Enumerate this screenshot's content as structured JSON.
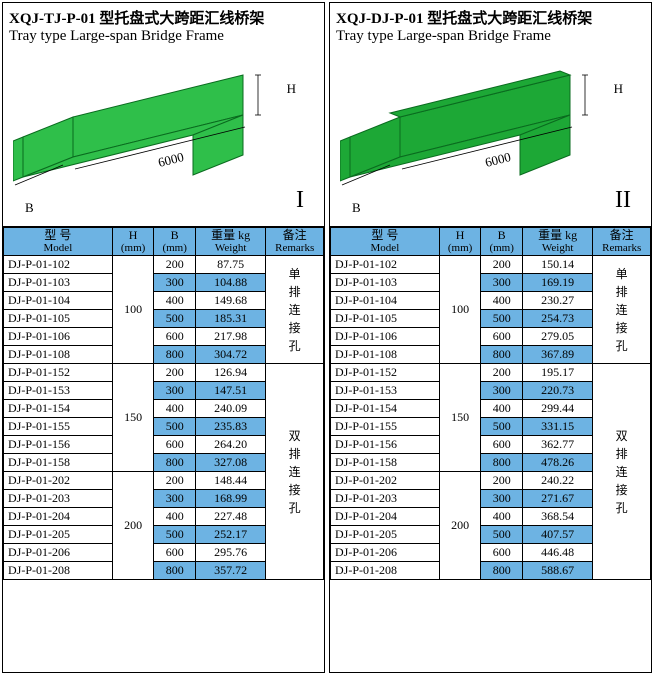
{
  "panels": [
    {
      "title_cn": "XQJ-TJ-P-01 型托盘式大跨距汇线桥架",
      "title_en": "Tray type Large-span Bridge Frame",
      "roman": "I",
      "length_label": "6000",
      "dim_H": "H",
      "dim_B": "B",
      "tray_fill": "#2fbf4a",
      "header": {
        "model_cn": "型 号",
        "model_en": "Model",
        "h_cn": "H",
        "h_en": "(mm)",
        "b_cn": "B",
        "b_en": "(mm)",
        "w_cn": "重量 kg",
        "w_en": "Weight",
        "r_cn": "备注",
        "r_en": "Remarks"
      },
      "groups": [
        {
          "H": "100",
          "remarks": "单排连接孔",
          "remarks_span": 6,
          "rows": [
            {
              "m": "DJ-P-01-102",
              "b": "200",
              "w": "87.75"
            },
            {
              "m": "DJ-P-01-103",
              "b": "300",
              "w": "104.88"
            },
            {
              "m": "DJ-P-01-104",
              "b": "400",
              "w": "149.68"
            },
            {
              "m": "DJ-P-01-105",
              "b": "500",
              "w": "185.31"
            },
            {
              "m": "DJ-P-01-106",
              "b": "600",
              "w": "217.98"
            },
            {
              "m": "DJ-P-01-108",
              "b": "800",
              "w": "304.72"
            }
          ]
        },
        {
          "H": "150",
          "remarks": "双排连接孔",
          "remarks_span": 12,
          "rows": [
            {
              "m": "DJ-P-01-152",
              "b": "200",
              "w": "126.94"
            },
            {
              "m": "DJ-P-01-153",
              "b": "300",
              "w": "147.51"
            },
            {
              "m": "DJ-P-01-154",
              "b": "400",
              "w": "240.09"
            },
            {
              "m": "DJ-P-01-155",
              "b": "500",
              "w": "235.83"
            },
            {
              "m": "DJ-P-01-156",
              "b": "600",
              "w": "264.20"
            },
            {
              "m": "DJ-P-01-158",
              "b": "800",
              "w": "327.08"
            }
          ]
        },
        {
          "H": "200",
          "remarks": null,
          "rows": [
            {
              "m": "DJ-P-01-202",
              "b": "200",
              "w": "148.44"
            },
            {
              "m": "DJ-P-01-203",
              "b": "300",
              "w": "168.99"
            },
            {
              "m": "DJ-P-01-204",
              "b": "400",
              "w": "227.48"
            },
            {
              "m": "DJ-P-01-205",
              "b": "500",
              "w": "252.17"
            },
            {
              "m": "DJ-P-01-206",
              "b": "600",
              "w": "295.76"
            },
            {
              "m": "DJ-P-01-208",
              "b": "800",
              "w": "357.72"
            }
          ]
        }
      ]
    },
    {
      "title_cn": "XQJ-DJ-P-01 型托盘式大跨距汇线桥架",
      "title_en": "Tray type Large-span Bridge Frame",
      "roman": "II",
      "length_label": "6000",
      "dim_H": "H",
      "dim_B": "B",
      "tray_fill": "#1da836",
      "header": {
        "model_cn": "型 号",
        "model_en": "Model",
        "h_cn": "H",
        "h_en": "(mm)",
        "b_cn": "B",
        "b_en": "(mm)",
        "w_cn": "重量 kg",
        "w_en": "Weight",
        "r_cn": "备注",
        "r_en": "Remarks"
      },
      "groups": [
        {
          "H": "100",
          "remarks": "单排连接孔",
          "remarks_span": 6,
          "rows": [
            {
              "m": "DJ-P-01-102",
              "b": "200",
              "w": "150.14"
            },
            {
              "m": "DJ-P-01-103",
              "b": "300",
              "w": "169.19"
            },
            {
              "m": "DJ-P-01-104",
              "b": "400",
              "w": "230.27"
            },
            {
              "m": "DJ-P-01-105",
              "b": "500",
              "w": "254.73"
            },
            {
              "m": "DJ-P-01-106",
              "b": "600",
              "w": "279.05"
            },
            {
              "m": "DJ-P-01-108",
              "b": "800",
              "w": "367.89"
            }
          ]
        },
        {
          "H": "150",
          "remarks": "双排连接孔",
          "remarks_span": 12,
          "rows": [
            {
              "m": "DJ-P-01-152",
              "b": "200",
              "w": "195.17"
            },
            {
              "m": "DJ-P-01-153",
              "b": "300",
              "w": "220.73"
            },
            {
              "m": "DJ-P-01-154",
              "b": "400",
              "w": "299.44"
            },
            {
              "m": "DJ-P-01-155",
              "b": "500",
              "w": "331.15"
            },
            {
              "m": "DJ-P-01-156",
              "b": "600",
              "w": "362.77"
            },
            {
              "m": "DJ-P-01-158",
              "b": "800",
              "w": "478.26"
            }
          ]
        },
        {
          "H": "200",
          "remarks": null,
          "rows": [
            {
              "m": "DJ-P-01-202",
              "b": "200",
              "w": "240.22"
            },
            {
              "m": "DJ-P-01-203",
              "b": "300",
              "w": "271.67"
            },
            {
              "m": "DJ-P-01-204",
              "b": "400",
              "w": "368.54"
            },
            {
              "m": "DJ-P-01-205",
              "b": "500",
              "w": "407.57"
            },
            {
              "m": "DJ-P-01-206",
              "b": "600",
              "w": "446.48"
            },
            {
              "m": "DJ-P-01-208",
              "b": "800",
              "w": "588.67"
            }
          ]
        }
      ]
    }
  ]
}
